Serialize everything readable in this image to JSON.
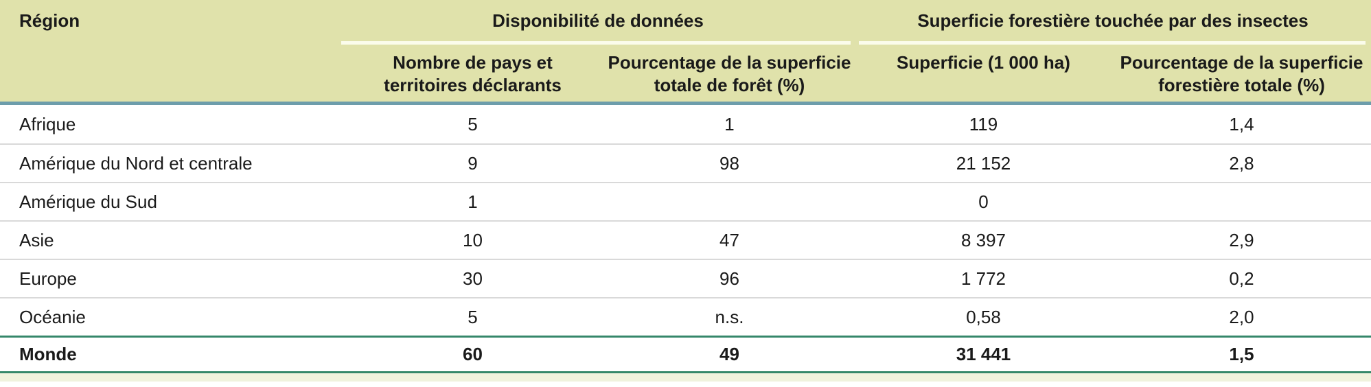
{
  "table": {
    "region_column_header": "Région",
    "groups": [
      {
        "label": "Disponibilité de données",
        "subcolumns": [
          "Nombre de pays et territoires déclarants",
          "Pourcentage de la superficie totale de forêt (%)"
        ]
      },
      {
        "label": "Superficie forestière touchée par des insectes",
        "subcolumns": [
          "Superficie (1 000 ha)",
          "Pourcentage de la superficie forestière totale (%)"
        ]
      }
    ],
    "rows": [
      {
        "region": "Afrique",
        "values": [
          "5",
          "1",
          "119",
          "1,4"
        ],
        "is_total": false
      },
      {
        "region": "Amérique du Nord et centrale",
        "values": [
          "9",
          "98",
          "21 152",
          "2,8"
        ],
        "is_total": false
      },
      {
        "region": "Amérique du Sud",
        "values": [
          "1",
          "",
          "0",
          ""
        ],
        "is_total": false
      },
      {
        "region": "Asie",
        "values": [
          "10",
          "47",
          "8 397",
          "2,9"
        ],
        "is_total": false
      },
      {
        "region": "Europe",
        "values": [
          "30",
          "96",
          "1 772",
          "0,2"
        ],
        "is_total": false
      },
      {
        "region": "Océanie",
        "values": [
          "5",
          "n.s.",
          "0,58",
          "2,0"
        ],
        "is_total": false
      },
      {
        "region": "Monde",
        "values": [
          "60",
          "49",
          "31 441",
          "1,5"
        ],
        "is_total": true
      }
    ]
  },
  "colors": {
    "header_bg": "#e0e2ab",
    "header_bottom_border": "#6d9dab",
    "total_row_border": "#35876a",
    "row_separator": "#d9d9d9",
    "group_underline": "#fbfceb",
    "footer_strip": "#f0f2dd",
    "text": "#1a1a1a"
  }
}
